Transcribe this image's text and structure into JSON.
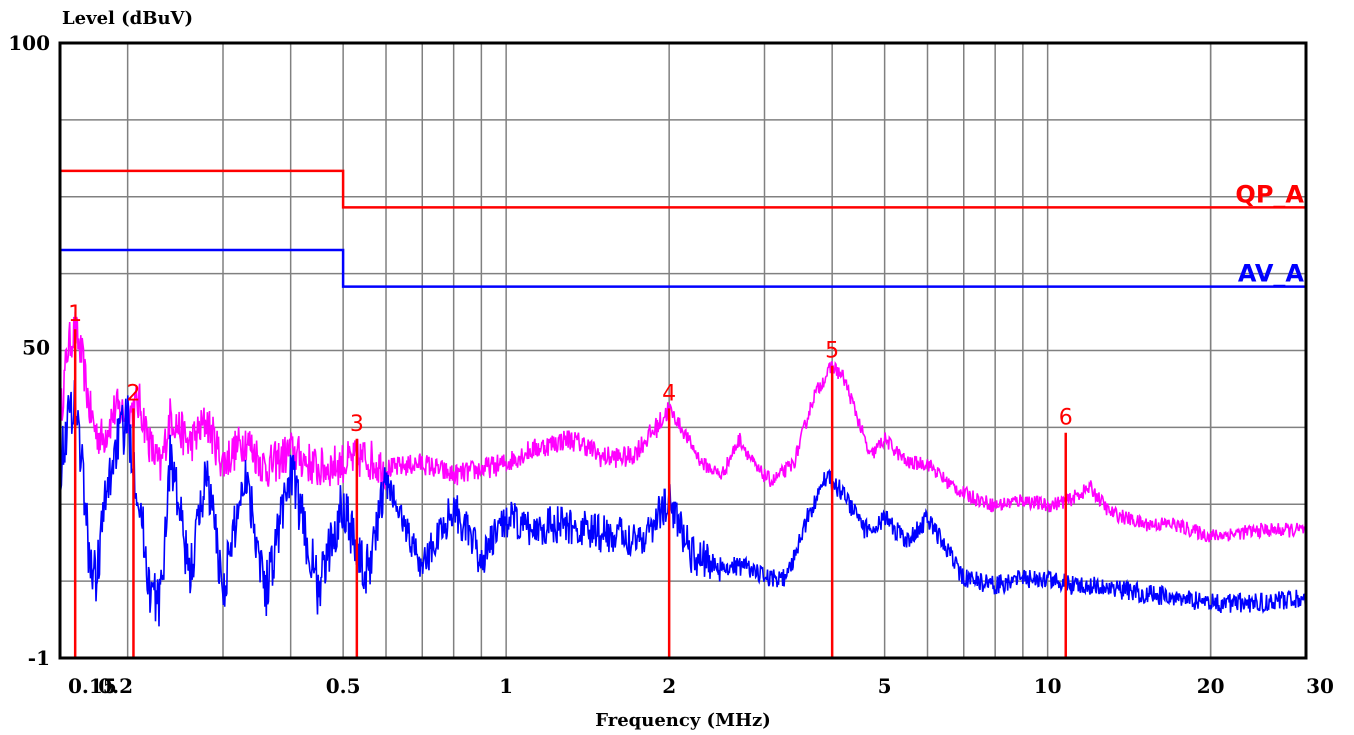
{
  "chart_data": {
    "type": "line",
    "title": "",
    "xlabel": "Frequency (MHz)",
    "ylabel": "Level (dBuV)",
    "x_scale": "log",
    "xlim": [
      0.15,
      30
    ],
    "ylim": [
      -1,
      100
    ],
    "grid": true,
    "x_ticks": [
      {
        "value": 0.15,
        "label": "0.15"
      },
      {
        "value": 0.2,
        "label": "0.2"
      },
      {
        "value": 0.5,
        "label": "0.5"
      },
      {
        "value": 1,
        "label": "1"
      },
      {
        "value": 2,
        "label": "2"
      },
      {
        "value": 5,
        "label": "5"
      },
      {
        "value": 10,
        "label": "10"
      },
      {
        "value": 20,
        "label": "20"
      },
      {
        "value": 30,
        "label": "30"
      }
    ],
    "y_ticks": [
      {
        "value": 100,
        "label": "100"
      },
      {
        "value": 50,
        "label": "50"
      },
      {
        "value": -1,
        "label": "-1"
      }
    ],
    "limit_lines": [
      {
        "name": "QP_A",
        "color": "#ff0000",
        "points": [
          [
            0.15,
            79
          ],
          [
            0.5,
            79
          ],
          [
            0.5,
            73
          ],
          [
            30,
            73
          ]
        ]
      },
      {
        "name": "AV_A",
        "color": "#0000ff",
        "points": [
          [
            0.15,
            66
          ],
          [
            0.5,
            66
          ],
          [
            0.5,
            60
          ],
          [
            30,
            60
          ]
        ]
      }
    ],
    "series": [
      {
        "color": "#ff00ff",
        "points": [
          [
            0.15,
            38
          ],
          [
            0.155,
            50
          ],
          [
            0.16,
            53
          ],
          [
            0.165,
            48
          ],
          [
            0.17,
            40
          ],
          [
            0.175,
            36
          ],
          [
            0.18,
            35
          ],
          [
            0.19,
            40
          ],
          [
            0.2,
            39
          ],
          [
            0.21,
            41
          ],
          [
            0.22,
            34
          ],
          [
            0.23,
            30
          ],
          [
            0.24,
            39
          ],
          [
            0.26,
            34
          ],
          [
            0.28,
            38
          ],
          [
            0.3,
            31
          ],
          [
            0.33,
            35
          ],
          [
            0.36,
            30
          ],
          [
            0.4,
            33
          ],
          [
            0.45,
            30
          ],
          [
            0.5,
            31
          ],
          [
            0.55,
            32
          ],
          [
            0.6,
            30
          ],
          [
            0.7,
            31
          ],
          [
            0.8,
            29
          ],
          [
            0.9,
            30
          ],
          [
            1.0,
            31
          ],
          [
            1.1,
            33
          ],
          [
            1.2,
            34
          ],
          [
            1.3,
            35
          ],
          [
            1.4,
            34
          ],
          [
            1.5,
            32
          ],
          [
            1.7,
            32
          ],
          [
            1.9,
            37
          ],
          [
            2.0,
            40
          ],
          [
            2.1,
            37
          ],
          [
            2.3,
            31
          ],
          [
            2.5,
            29
          ],
          [
            2.7,
            35
          ],
          [
            2.9,
            30
          ],
          [
            3.1,
            28
          ],
          [
            3.4,
            31
          ],
          [
            3.7,
            42
          ],
          [
            4.0,
            47
          ],
          [
            4.2,
            45
          ],
          [
            4.4,
            40
          ],
          [
            4.7,
            32
          ],
          [
            5.0,
            35
          ],
          [
            5.5,
            31
          ],
          [
            6.0,
            31
          ],
          [
            6.5,
            28
          ],
          [
            7.0,
            26
          ],
          [
            8.0,
            24
          ],
          [
            9.0,
            25
          ],
          [
            10.0,
            24
          ],
          [
            11.0,
            25
          ],
          [
            12.0,
            27
          ],
          [
            13.0,
            23
          ],
          [
            15.0,
            21
          ],
          [
            17.0,
            21
          ],
          [
            20.0,
            19
          ],
          [
            25.0,
            20
          ],
          [
            30.0,
            20
          ]
        ]
      },
      {
        "color": "#0000ff",
        "points": [
          [
            0.15,
            30
          ],
          [
            0.155,
            38
          ],
          [
            0.16,
            42
          ],
          [
            0.165,
            30
          ],
          [
            0.17,
            15
          ],
          [
            0.175,
            12
          ],
          [
            0.18,
            22
          ],
          [
            0.19,
            34
          ],
          [
            0.2,
            38
          ],
          [
            0.21,
            25
          ],
          [
            0.22,
            10
          ],
          [
            0.23,
            8
          ],
          [
            0.24,
            33
          ],
          [
            0.26,
            12
          ],
          [
            0.28,
            30
          ],
          [
            0.3,
            10
          ],
          [
            0.33,
            30
          ],
          [
            0.36,
            10
          ],
          [
            0.4,
            30
          ],
          [
            0.45,
            10
          ],
          [
            0.5,
            25
          ],
          [
            0.55,
            12
          ],
          [
            0.6,
            28
          ],
          [
            0.7,
            14
          ],
          [
            0.8,
            24
          ],
          [
            0.9,
            15
          ],
          [
            1.0,
            22
          ],
          [
            1.1,
            20
          ],
          [
            1.2,
            21
          ],
          [
            1.4,
            20
          ],
          [
            1.6,
            19
          ],
          [
            1.8,
            19
          ],
          [
            2.0,
            25
          ],
          [
            2.2,
            16
          ],
          [
            2.5,
            14
          ],
          [
            2.8,
            14
          ],
          [
            3.0,
            12
          ],
          [
            3.3,
            12
          ],
          [
            3.6,
            22
          ],
          [
            3.9,
            29
          ],
          [
            4.2,
            26
          ],
          [
            4.6,
            20
          ],
          [
            5.0,
            22
          ],
          [
            5.5,
            18
          ],
          [
            6.0,
            22
          ],
          [
            6.5,
            17
          ],
          [
            7.0,
            12
          ],
          [
            8.0,
            11
          ],
          [
            9.0,
            12
          ],
          [
            10.0,
            12
          ],
          [
            11.0,
            11
          ],
          [
            12.0,
            11
          ],
          [
            14.0,
            10
          ],
          [
            17.0,
            9
          ],
          [
            20.0,
            8
          ],
          [
            25.0,
            8
          ],
          [
            30.0,
            9
          ]
        ]
      }
    ],
    "markers": [
      {
        "label": "1",
        "x": 0.16,
        "y": 53
      },
      {
        "label": "2",
        "x": 0.205,
        "y": 40
      },
      {
        "label": "3",
        "x": 0.53,
        "y": 35
      },
      {
        "label": "4",
        "x": 2.0,
        "y": 40
      },
      {
        "label": "5",
        "x": 4.0,
        "y": 47
      },
      {
        "label": "6",
        "x": 10.8,
        "y": 36
      }
    ],
    "marker_color": "#ff0000"
  }
}
